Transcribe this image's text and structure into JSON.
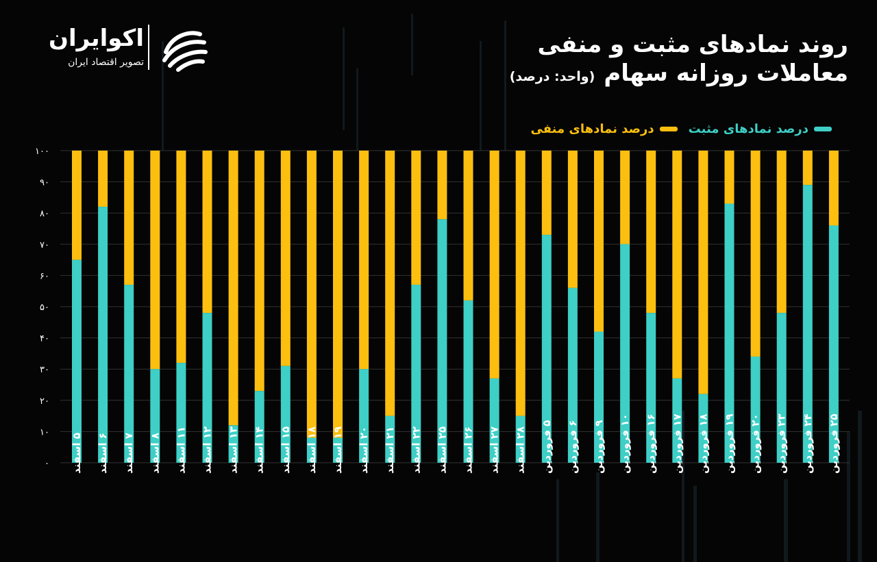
{
  "title": {
    "line1": "روند نمادهای مثبت و منفی",
    "line2": "معاملات روزانه سهام",
    "unit": "(واحد: درصد)"
  },
  "logo": {
    "name": "اکوایران",
    "tagline": "تصویر اقتصاد ایران"
  },
  "colors": {
    "positive": "#3ecfc6",
    "negative": "#fcbf10",
    "background": "#050505",
    "grid": "#333333"
  },
  "chart_data": {
    "type": "bar",
    "stacked": true,
    "categories": [
      "۵ اسفند",
      "۶ اسفند",
      "۷ اسفند",
      "۸ اسفند",
      "۱۱ اسفند",
      "۱۲ اسفند",
      "۱۳ اسفند",
      "۱۴ اسفند",
      "۱۵ اسفند",
      "۱۸ اسفند",
      "۱۹ اسفند",
      "۲۰ اسفند",
      "۲۱ اسفند",
      "۲۲ اسفند",
      "۲۵ اسفند",
      "۲۶ اسفند",
      "۲۷ اسفند",
      "۲۸ اسفند",
      "۵ فروردین",
      "۶ فروردین",
      "۹ فروردین",
      "۱۰ فروردین",
      "۱۶ فروردین",
      "۱۷ فروردین",
      "۱۸ فروردین",
      "۱۹ فروردین",
      "۲۰ فروردین",
      "۲۳ فروردین",
      "۲۴ فروردین",
      "۲۵ فروردین"
    ],
    "series": [
      {
        "name": "درصد نمادهای مثبت",
        "color": "#3ecfc6",
        "values": [
          65,
          82,
          57,
          30,
          32,
          48,
          12,
          23,
          31,
          8,
          8,
          30,
          15,
          57,
          78,
          52,
          27,
          15,
          73,
          56,
          42,
          70,
          48,
          27,
          22,
          83,
          34,
          48,
          89,
          76
        ]
      },
      {
        "name": "درصد نمادهای منفی",
        "color": "#fcbf10",
        "values": [
          35,
          18,
          43,
          70,
          68,
          52,
          88,
          77,
          69,
          92,
          92,
          70,
          85,
          43,
          22,
          48,
          73,
          85,
          27,
          44,
          58,
          30,
          52,
          73,
          78,
          17,
          66,
          52,
          11,
          24
        ]
      }
    ],
    "ylim": [
      0,
      100
    ],
    "yticks": [
      "۰",
      "۱۰",
      "۲۰",
      "۳۰",
      "۴۰",
      "۵۰",
      "۶۰",
      "۷۰",
      "۸۰",
      "۹۰",
      "۱۰۰"
    ],
    "grid": true,
    "legend_position": "top-right"
  }
}
